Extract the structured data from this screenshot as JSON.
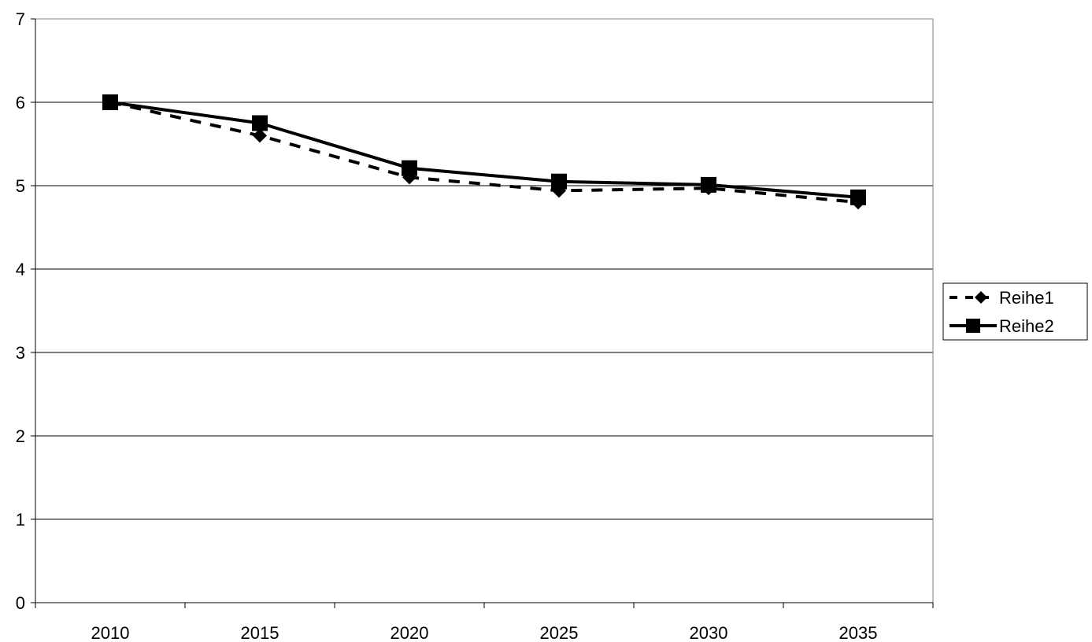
{
  "chart_data": {
    "type": "line",
    "title": "",
    "xlabel": "",
    "ylabel": "",
    "categories": [
      "2010",
      "2015",
      "2020",
      "2025",
      "2030",
      "2035"
    ],
    "ylim": [
      0,
      7
    ],
    "yticks": [
      0,
      1,
      2,
      3,
      4,
      5,
      6,
      7
    ],
    "grid": "horizontal",
    "legend_position": "right",
    "series": [
      {
        "name": "Reihe1",
        "values": [
          6.0,
          5.6,
          5.1,
          4.94,
          4.97,
          4.8
        ],
        "line_style": "dashed",
        "marker": "diamond",
        "color": "#000000"
      },
      {
        "name": "Reihe2",
        "values": [
          6.0,
          5.75,
          5.21,
          5.05,
          5.01,
          4.86
        ],
        "line_style": "solid",
        "marker": "square",
        "color": "#000000"
      }
    ]
  }
}
